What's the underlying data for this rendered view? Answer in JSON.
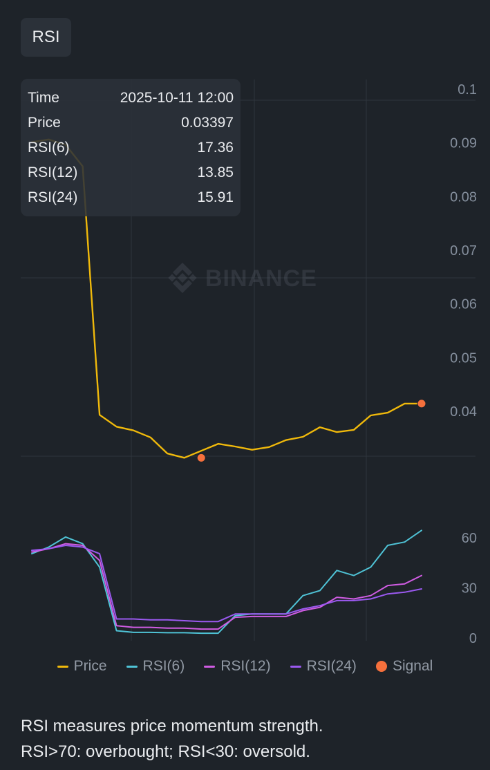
{
  "header": {
    "tab_label": "RSI"
  },
  "tooltip": {
    "rows": [
      {
        "label": "Time",
        "value": "2025-10-11 12:00"
      },
      {
        "label": "Price",
        "value": "0.03397"
      },
      {
        "label": "RSI(6)",
        "value": "17.36"
      },
      {
        "label": "RSI(12)",
        "value": "13.85"
      },
      {
        "label": "RSI(24)",
        "value": "15.91"
      }
    ]
  },
  "watermark": "BINANCE",
  "legend": [
    {
      "label": "Price",
      "color": "#f0b90b",
      "shape": "line"
    },
    {
      "label": "RSI(6)",
      "color": "#4fc3d6",
      "shape": "line"
    },
    {
      "label": "RSI(12)",
      "color": "#d05ce3",
      "shape": "line"
    },
    {
      "label": "RSI(24)",
      "color": "#9b59f0",
      "shape": "line"
    },
    {
      "label": "Signal",
      "color": "#f6703c",
      "shape": "dot"
    }
  ],
  "description": {
    "line1": "RSI measures price momentum strength.",
    "line2": "RSI>70: overbought; RSI<30: oversold."
  },
  "chart_data": [
    {
      "type": "line",
      "title": "",
      "ylabel": "",
      "ylim": [
        0.0315,
        0.1
      ],
      "yticks": [
        0.04,
        0.05,
        0.06,
        0.07,
        0.08,
        0.09,
        0.1
      ],
      "ytick_labels": [
        "0.04",
        "0.05",
        "0.06",
        "0.07",
        "0.08",
        "0.09",
        "0.1"
      ],
      "x": [
        0,
        1,
        2,
        3,
        4,
        5,
        6,
        7,
        8,
        9,
        10,
        11,
        12,
        13,
        14,
        15,
        16,
        17,
        18,
        19,
        20,
        21,
        22,
        23
      ],
      "series": [
        {
          "name": "Price",
          "color": "#f0b90b",
          "values": [
            0.09,
            0.0905,
            0.0895,
            0.0855,
            0.0392,
            0.037,
            0.0363,
            0.035,
            0.032,
            0.0312,
            0.0325,
            0.0338,
            0.0333,
            0.0327,
            0.0332,
            0.0345,
            0.0351,
            0.0369,
            0.036,
            0.0364,
            0.0391,
            0.0396,
            0.0413,
            0.0413
          ]
        }
      ],
      "signals": [
        {
          "x": 10,
          "y": 0.0312
        },
        {
          "x": 23,
          "y": 0.0413
        }
      ]
    },
    {
      "type": "line",
      "title": "",
      "ylabel": "",
      "ylim": [
        -2,
        67
      ],
      "yticks": [
        0,
        30,
        60
      ],
      "ytick_labels": [
        "0",
        "30",
        "60"
      ],
      "x": [
        0,
        1,
        2,
        3,
        4,
        5,
        6,
        7,
        8,
        9,
        10,
        11,
        12,
        13,
        14,
        15,
        16,
        17,
        18,
        19,
        20,
        21,
        22,
        23
      ],
      "series": [
        {
          "name": "RSI(6)",
          "color": "#4fc3d6",
          "values": [
            50,
            54,
            60,
            56,
            42,
            4,
            3,
            3,
            2.8,
            2.8,
            2.5,
            2.5,
            13,
            14,
            14,
            14,
            25,
            28,
            40,
            37,
            42,
            55,
            57,
            64
          ]
        },
        {
          "name": "RSI(12)",
          "color": "#d05ce3",
          "values": [
            51,
            53,
            56,
            55,
            46,
            7,
            6,
            6,
            5.5,
            5.5,
            5,
            5,
            12,
            12.5,
            12.5,
            12.5,
            16,
            18,
            24,
            23,
            25,
            31,
            32,
            37
          ]
        },
        {
          "name": "RSI(24)",
          "color": "#9b59f0",
          "values": [
            52,
            53,
            55,
            54,
            50,
            11,
            11,
            10.5,
            10.5,
            10,
            9.5,
            9.5,
            14,
            14,
            14,
            14,
            17,
            19,
            22,
            22,
            23,
            26,
            27,
            29
          ]
        }
      ]
    }
  ]
}
